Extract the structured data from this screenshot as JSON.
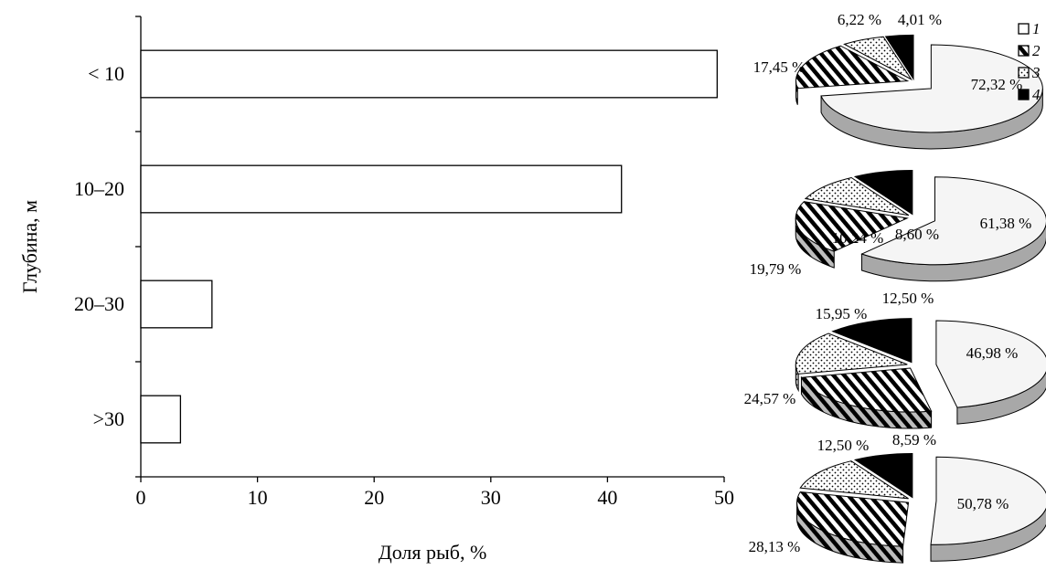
{
  "chart_data": [
    {
      "type": "bar",
      "orientation": "horizontal",
      "categories": [
        "< 10",
        "10–20",
        "20–30",
        ">30"
      ],
      "values": [
        49.4,
        41.2,
        6.1,
        3.4
      ],
      "xlabel": "Доля рыб, %",
      "ylabel": "Глубина, м",
      "xlim": [
        0,
        50
      ],
      "xticks": [
        "0",
        "10",
        "20",
        "30",
        "40",
        "50"
      ],
      "grid": false,
      "bar_color": "#ffffff",
      "bar_edge_color": "#000000"
    },
    {
      "type": "pie",
      "category": "< 10",
      "values": [
        72.32,
        17.45,
        6.22,
        4.01
      ],
      "labels": [
        "72,32 %",
        "17,45 %",
        "6,22 %",
        "4,01 %"
      ]
    },
    {
      "type": "pie",
      "category": "10–20",
      "values": [
        61.38,
        19.79,
        10.24,
        8.6
      ],
      "labels": [
        "61,38 %",
        "19,79 %",
        "10,24 %",
        "8,60 %"
      ]
    },
    {
      "type": "pie",
      "category": "20–30",
      "values": [
        46.98,
        24.57,
        15.95,
        12.5
      ],
      "labels": [
        "46,98 %",
        "24,57 %",
        "15,95 %",
        "12,50 %"
      ]
    },
    {
      "type": "pie",
      "category": ">30",
      "values": [
        50.78,
        28.13,
        12.5,
        8.59
      ],
      "labels": [
        "50,78 %",
        "28,13 %",
        "12,50 %",
        "8,59 %"
      ]
    }
  ],
  "legend": {
    "placement": "top-right",
    "items": [
      {
        "label": "1",
        "fill": "white"
      },
      {
        "label": "2",
        "fill": "hatch"
      },
      {
        "label": "3",
        "fill": "dots"
      },
      {
        "label": "4",
        "fill": "black"
      }
    ]
  }
}
